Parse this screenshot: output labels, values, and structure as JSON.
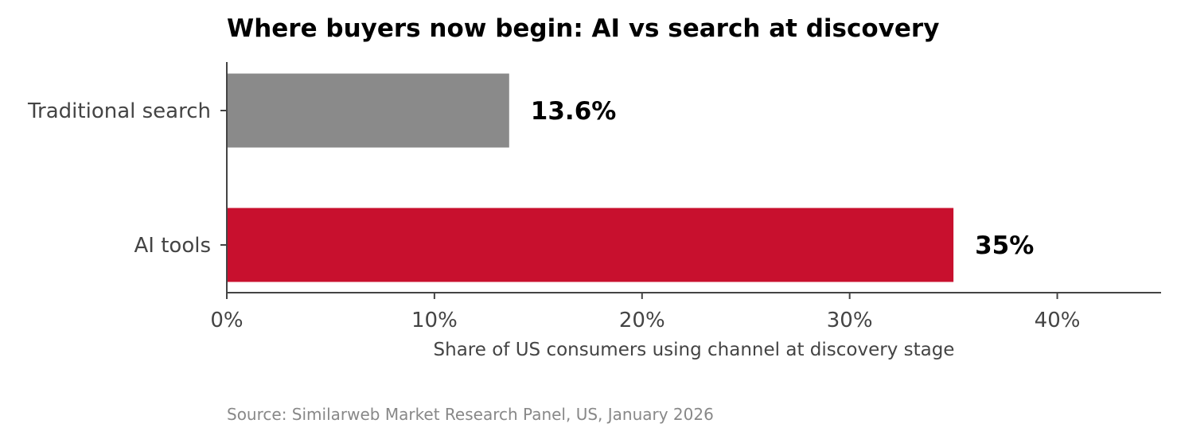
{
  "colors": {
    "ai": "#C8102E",
    "search": "#8A8A8A"
  },
  "source": "Source: Similarweb Market Research Panel, US, January 2026",
  "chart_data": {
    "type": "bar",
    "orientation": "horizontal",
    "title": "Where buyers now begin: AI vs search at discovery",
    "xlabel": "Share of US consumers using channel at discovery stage",
    "ylabel": "",
    "categories": [
      "Traditional search",
      "AI tools"
    ],
    "values": [
      13.6,
      35
    ],
    "value_labels": [
      "13.6%",
      "35%"
    ],
    "bar_colors": [
      "#8A8A8A",
      "#C8102E"
    ],
    "xlim": [
      0,
      45
    ],
    "xticks": [
      0,
      10,
      20,
      30,
      40
    ],
    "xtick_labels": [
      "0%",
      "10%",
      "20%",
      "30%",
      "40%"
    ],
    "grid": false,
    "legend": "none"
  }
}
